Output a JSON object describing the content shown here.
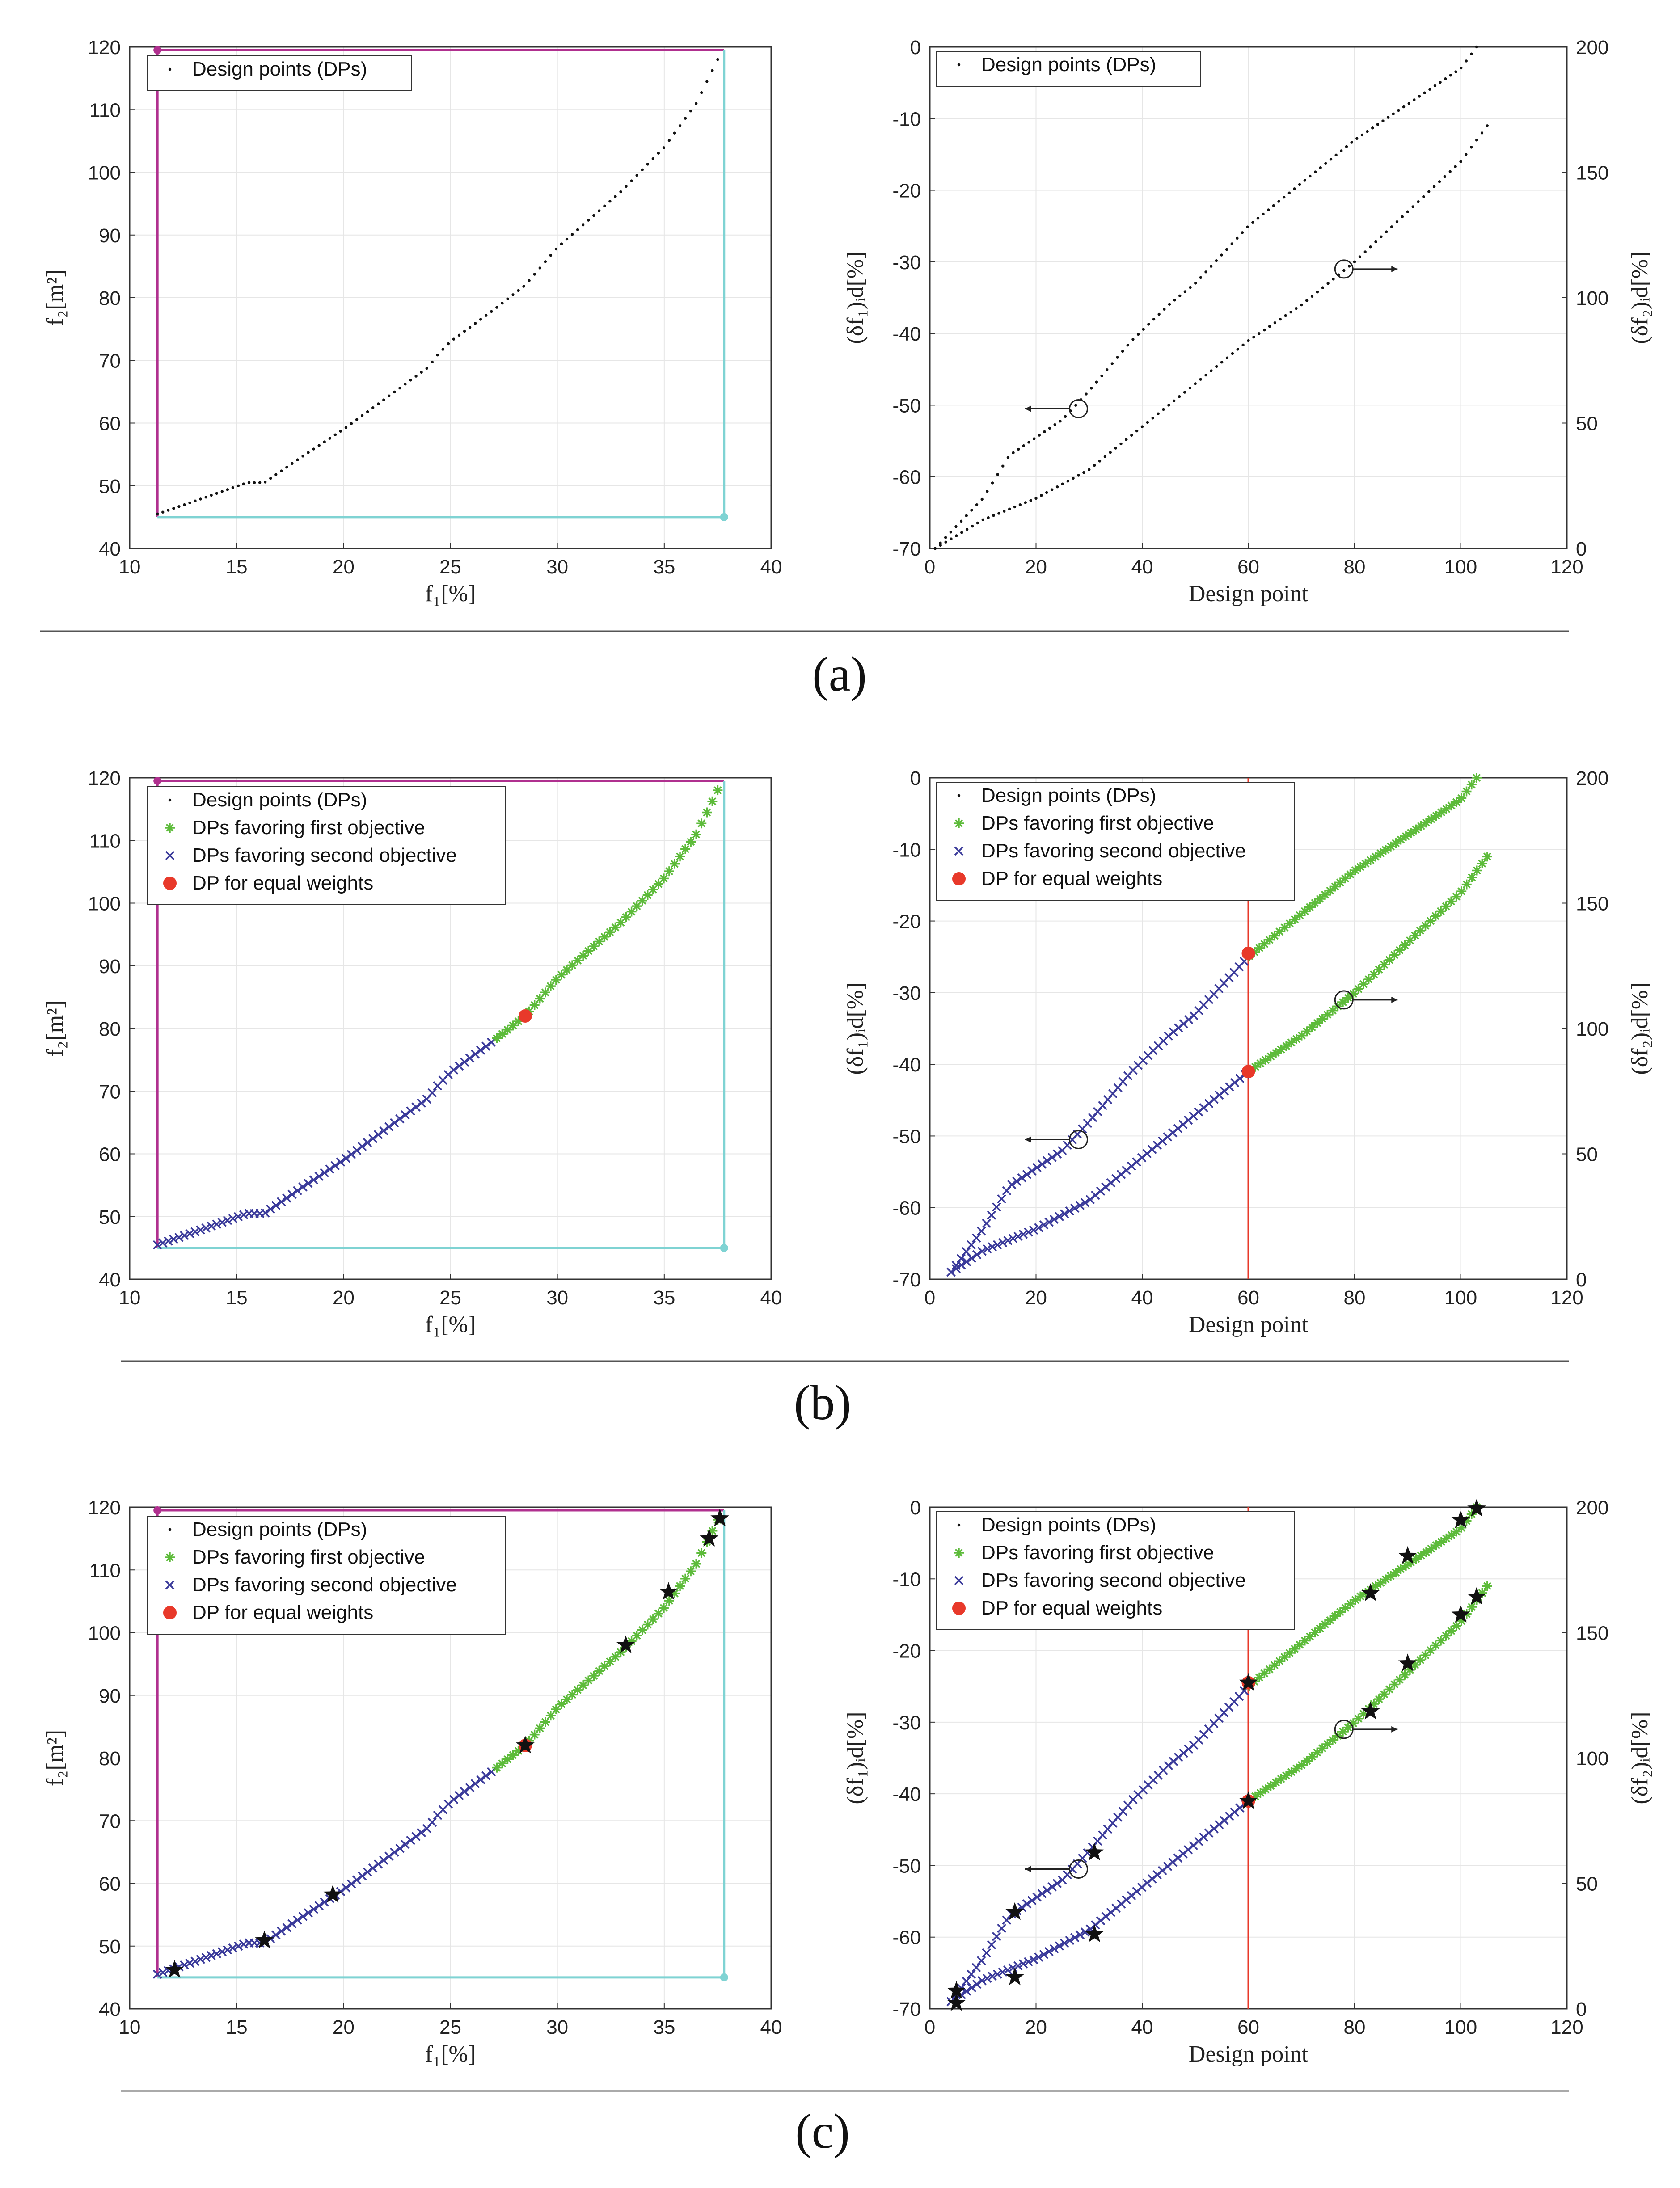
{
  "colors": {
    "dp": "#111111",
    "first": "#5dbb3a",
    "second": "#3a3a9a",
    "equal": "#e8392a",
    "star": "#111111",
    "magenta": "#b0308f",
    "cyan": "#7fd3d3",
    "redline": "#e8392a",
    "grid": "#e6e6e6"
  },
  "chart_data": [
    {
      "id": "a-left",
      "type": "scatter",
      "panel_label": "(a)",
      "xlabel": "f₁[%]",
      "ylabel": "f₂[m²]",
      "xlim": [
        10,
        40
      ],
      "ylim": [
        40,
        120
      ],
      "xticks": [
        "10",
        "15",
        "20",
        "25",
        "30",
        "35",
        "40"
      ],
      "yticks": [
        "40",
        "50",
        "60",
        "70",
        "80",
        "90",
        "100",
        "110",
        "120"
      ],
      "legend": [
        "Design points (DPs)"
      ],
      "frame": {
        "f1_min": 11.3,
        "f1_max": 37.8,
        "f2_min": 45,
        "f2_max": 119.5
      },
      "curve": [
        [
          11.3,
          45.5
        ],
        [
          13,
          47.5
        ],
        [
          15.5,
          50.5
        ],
        [
          16.3,
          50.5
        ],
        [
          18,
          54.5
        ],
        [
          20,
          59
        ],
        [
          22,
          64
        ],
        [
          24,
          69
        ],
        [
          24.3,
          70.5
        ],
        [
          25,
          73
        ],
        [
          27,
          78
        ],
        [
          28.5,
          82
        ],
        [
          30,
          88
        ],
        [
          31,
          91
        ],
        [
          33,
          97
        ],
        [
          35,
          104
        ],
        [
          36.5,
          111
        ],
        [
          37.5,
          118
        ]
      ],
      "groups": {
        "dp": [
          0,
          1
        ]
      }
    },
    {
      "id": "a-right",
      "type": "scatter",
      "xlabel": "Design point",
      "ylabel": "(δf₁)ᵢd[%]",
      "ylabel_right": "(δf₂)ᵢd[%]",
      "xlim": [
        0,
        120
      ],
      "ylim": [
        -70,
        0
      ],
      "ylim_right": [
        0,
        200
      ],
      "xticks": [
        "0",
        "20",
        "40",
        "60",
        "80",
        "100",
        "120"
      ],
      "yticks": [
        "-70",
        "-60",
        "-50",
        "-40",
        "-30",
        "-20",
        "-10",
        "0"
      ],
      "yticks_right": [
        "0",
        "50",
        "100",
        "150",
        "200"
      ],
      "legend": [
        "Design points (DPs)"
      ],
      "upper": [
        [
          1,
          -70
        ],
        [
          10,
          -63
        ],
        [
          15,
          -57
        ],
        [
          25,
          -52
        ],
        [
          30,
          -48
        ],
        [
          38,
          -41
        ],
        [
          45,
          -36
        ],
        [
          50,
          -33
        ],
        [
          60,
          -25
        ],
        [
          70,
          -19
        ],
        [
          80,
          -13
        ],
        [
          90,
          -8
        ],
        [
          100,
          -3
        ],
        [
          103,
          0
        ]
      ],
      "lower": [
        [
          1,
          -70
        ],
        [
          10,
          -66
        ],
        [
          20,
          -63
        ],
        [
          30,
          -59
        ],
        [
          40,
          -53
        ],
        [
          50,
          -47
        ],
        [
          60,
          -41
        ],
        [
          70,
          -36
        ],
        [
          80,
          -30
        ],
        [
          90,
          -23
        ],
        [
          100,
          -16
        ],
        [
          105,
          -11
        ]
      ],
      "markers": [
        {
          "x": 28,
          "y": -50.5,
          "dir": "left"
        },
        {
          "x": 78,
          "y": -31,
          "dir": "right"
        }
      ],
      "groups": {
        "dp": [
          0,
          1
        ]
      }
    },
    {
      "id": "b-left",
      "type": "scatter",
      "panel_label": "(b)",
      "xlabel": "f₁[%]",
      "ylabel": "f₂[m²]",
      "xlim": [
        10,
        40
      ],
      "ylim": [
        40,
        120
      ],
      "xticks": [
        "10",
        "15",
        "20",
        "25",
        "30",
        "35",
        "40"
      ],
      "yticks": [
        "40",
        "50",
        "60",
        "70",
        "80",
        "90",
        "100",
        "110",
        "120"
      ],
      "legend": [
        "Design points (DPs)",
        "DPs favoring first objective",
        "DPs favoring second objective",
        "DP for equal weights"
      ],
      "frame": {
        "f1_min": 11.3,
        "f1_max": 37.8,
        "f2_min": 45,
        "f2_max": 119.5
      },
      "curve": [
        [
          11.3,
          45.5
        ],
        [
          13,
          47.5
        ],
        [
          15.5,
          50.5
        ],
        [
          16.3,
          50.5
        ],
        [
          18,
          54.5
        ],
        [
          20,
          59
        ],
        [
          22,
          64
        ],
        [
          24,
          69
        ],
        [
          24.3,
          70.5
        ],
        [
          25,
          73
        ],
        [
          27,
          78
        ],
        [
          28.5,
          82
        ],
        [
          30,
          88
        ],
        [
          31,
          91
        ],
        [
          33,
          97
        ],
        [
          35,
          104
        ],
        [
          36.5,
          111
        ],
        [
          37.5,
          118
        ]
      ],
      "equal_point": [
        28.5,
        82
      ],
      "groups": {
        "second": [
          0,
          0.6
        ],
        "first": [
          0.6,
          1
        ]
      }
    },
    {
      "id": "b-right",
      "type": "scatter",
      "xlabel": "Design point",
      "ylabel": "(δf₁)ᵢd[%]",
      "ylabel_right": "(δf₂)ᵢd[%]",
      "xlim": [
        0,
        120
      ],
      "ylim": [
        -70,
        0
      ],
      "ylim_right": [
        0,
        200
      ],
      "xticks": [
        "0",
        "20",
        "40",
        "60",
        "80",
        "100",
        "120"
      ],
      "yticks": [
        "-70",
        "-60",
        "-50",
        "-40",
        "-30",
        "-20",
        "-10",
        "0"
      ],
      "yticks_right": [
        "0",
        "50",
        "100",
        "150",
        "200"
      ],
      "legend": [
        "Design points (DPs)",
        "DPs favoring first objective",
        "DPs favoring second objective",
        "DP for equal weights"
      ],
      "upper": [
        [
          4,
          -69
        ],
        [
          10,
          -63
        ],
        [
          15,
          -57
        ],
        [
          25,
          -52
        ],
        [
          30,
          -48
        ],
        [
          38,
          -41
        ],
        [
          45,
          -36
        ],
        [
          50,
          -33
        ],
        [
          60,
          -25
        ],
        [
          70,
          -19
        ],
        [
          80,
          -13
        ],
        [
          90,
          -8
        ],
        [
          100,
          -3
        ],
        [
          103,
          0
        ]
      ],
      "lower": [
        [
          4,
          -69
        ],
        [
          10,
          -66
        ],
        [
          20,
          -63
        ],
        [
          30,
          -59
        ],
        [
          40,
          -53
        ],
        [
          50,
          -47
        ],
        [
          60,
          -41
        ],
        [
          70,
          -36
        ],
        [
          80,
          -30
        ],
        [
          90,
          -23
        ],
        [
          100,
          -16
        ],
        [
          105,
          -11
        ]
      ],
      "markers": [
        {
          "x": 28,
          "y": -50.5,
          "dir": "left"
        },
        {
          "x": 78,
          "y": -31,
          "dir": "right"
        }
      ],
      "vline": 60,
      "equal_points": [
        [
          60,
          -24.5
        ],
        [
          60,
          -41
        ]
      ],
      "groups": {
        "second_until_x": 60
      }
    },
    {
      "id": "c-left",
      "type": "scatter",
      "panel_label": "(c)",
      "xlabel": "f₁[%]",
      "ylabel": "f₂[m²]",
      "xlim": [
        10,
        40
      ],
      "ylim": [
        40,
        120
      ],
      "xticks": [
        "10",
        "15",
        "20",
        "25",
        "30",
        "35",
        "40"
      ],
      "yticks": [
        "40",
        "50",
        "60",
        "70",
        "80",
        "90",
        "100",
        "110",
        "120"
      ],
      "legend": [
        "Design points (DPs)",
        "DPs favoring first objective",
        "DPs favoring second objective",
        "DP for equal weights"
      ],
      "frame": {
        "f1_min": 11.3,
        "f1_max": 37.8,
        "f2_min": 45,
        "f2_max": 119.5
      },
      "curve": [
        [
          11.3,
          45.5
        ],
        [
          13,
          47.5
        ],
        [
          15.5,
          50.5
        ],
        [
          16.3,
          50.5
        ],
        [
          18,
          54.5
        ],
        [
          20,
          59
        ],
        [
          22,
          64
        ],
        [
          24,
          69
        ],
        [
          24.3,
          70.5
        ],
        [
          25,
          73
        ],
        [
          27,
          78
        ],
        [
          28.5,
          82
        ],
        [
          30,
          88
        ],
        [
          31,
          91
        ],
        [
          33,
          97
        ],
        [
          35,
          104
        ],
        [
          36.5,
          111
        ],
        [
          37.5,
          118
        ]
      ],
      "equal_point": [
        28.5,
        82
      ],
      "stars": [
        [
          12.1,
          46.2
        ],
        [
          16.3,
          50.9
        ],
        [
          19.5,
          58.2
        ],
        [
          28.5,
          82
        ],
        [
          33.2,
          98
        ],
        [
          35.2,
          106.5
        ],
        [
          37.1,
          115
        ],
        [
          37.6,
          118.2
        ]
      ],
      "groups": {
        "second": [
          0,
          0.6
        ],
        "first": [
          0.6,
          1
        ]
      }
    },
    {
      "id": "c-right",
      "type": "scatter",
      "xlabel": "Design point",
      "ylabel": "(δf₁)ᵢd[%]",
      "ylabel_right": "(δf₂)ᵢd[%]",
      "xlim": [
        0,
        120
      ],
      "ylim": [
        -70,
        0
      ],
      "ylim_right": [
        0,
        200
      ],
      "xticks": [
        "0",
        "20",
        "40",
        "60",
        "80",
        "100",
        "120"
      ],
      "yticks": [
        "-70",
        "-60",
        "-50",
        "-40",
        "-30",
        "-20",
        "-10",
        "0"
      ],
      "yticks_right": [
        "0",
        "50",
        "100",
        "150",
        "200"
      ],
      "legend": [
        "Design points (DPs)",
        "DPs favoring first objective",
        "DPs favoring second objective",
        "DP for equal weights"
      ],
      "upper": [
        [
          4,
          -69
        ],
        [
          10,
          -63
        ],
        [
          15,
          -57
        ],
        [
          25,
          -52
        ],
        [
          30,
          -48
        ],
        [
          38,
          -41
        ],
        [
          45,
          -36
        ],
        [
          50,
          -33
        ],
        [
          60,
          -25
        ],
        [
          70,
          -19
        ],
        [
          80,
          -13
        ],
        [
          90,
          -8
        ],
        [
          100,
          -3
        ],
        [
          103,
          0
        ]
      ],
      "lower": [
        [
          4,
          -69
        ],
        [
          10,
          -66
        ],
        [
          20,
          -63
        ],
        [
          30,
          -59
        ],
        [
          40,
          -53
        ],
        [
          50,
          -47
        ],
        [
          60,
          -41
        ],
        [
          70,
          -36
        ],
        [
          80,
          -30
        ],
        [
          90,
          -23
        ],
        [
          100,
          -16
        ],
        [
          105,
          -11
        ]
      ],
      "markers": [
        {
          "x": 28,
          "y": -50.5,
          "dir": "left"
        },
        {
          "x": 78,
          "y": -31,
          "dir": "right"
        }
      ],
      "vline": 60,
      "equal_points": [
        [
          60,
          -24.5
        ],
        [
          60,
          -41
        ]
      ],
      "stars": [
        [
          5,
          -67.5
        ],
        [
          16,
          -56.5
        ],
        [
          31,
          -48.2
        ],
        [
          60,
          -24.5
        ],
        [
          83,
          -12
        ],
        [
          90,
          -6.8
        ],
        [
          100,
          -1.8
        ],
        [
          103,
          -0.2
        ],
        [
          5,
          -69.2
        ],
        [
          16,
          -65.6
        ],
        [
          31,
          -59.6
        ],
        [
          60,
          -41
        ],
        [
          83,
          -28.5
        ],
        [
          90,
          -21.8
        ],
        [
          100,
          -15
        ],
        [
          103,
          -12.5
        ]
      ],
      "groups": {
        "second_until_x": 60
      }
    }
  ]
}
